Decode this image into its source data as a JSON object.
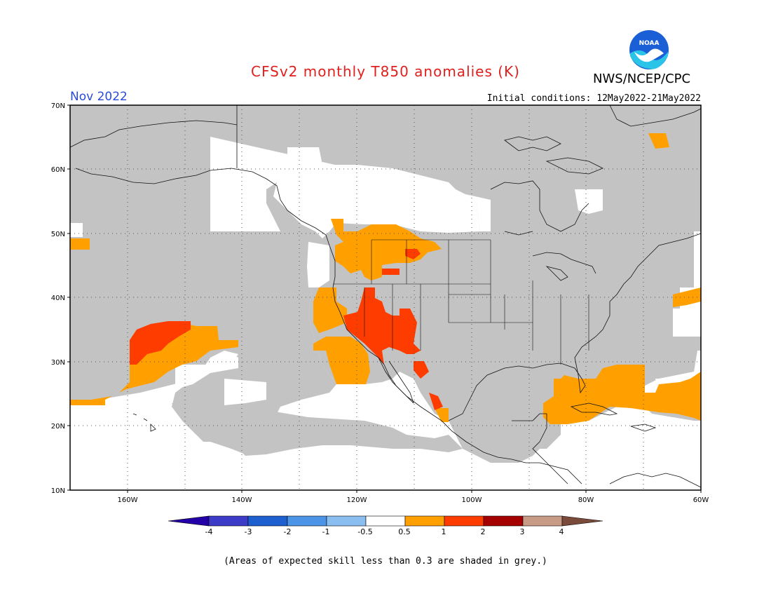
{
  "title": "CFSv2 monthly T850 anomalies (K)",
  "agency": "NWS/NCEP/CPC",
  "logo_text": "NOAA",
  "month": "Nov 2022",
  "initial_conditions": "Initial conditions: 12May2022-21May2022",
  "footnote": "(Areas of expected skill less than 0.3 are shaded in grey.)",
  "lat_labels": [
    "70N",
    "60N",
    "50N",
    "40N",
    "30N",
    "20N",
    "10N"
  ],
  "lon_labels": [
    "160W",
    "140W",
    "120W",
    "100W",
    "80W",
    "60W"
  ],
  "colors": {
    "grey_low_skill": "#c3c3c3",
    "map_bg": "#ffffff",
    "title_red": "#e0201e",
    "month_blue": "#2a4bd7"
  },
  "colorbar": {
    "tick_labels": [
      "-4",
      "-3",
      "-2",
      "-1",
      "-0.5",
      "0.5",
      "1",
      "2",
      "3",
      "4"
    ],
    "colors": [
      "#2400a8",
      "#3c3cc8",
      "#1e5fd0",
      "#4b94e8",
      "#8bbef0",
      "#ffffff",
      "#ff9f00",
      "#ff3c00",
      "#a50000",
      "#c89b87",
      "#7a4a3a"
    ]
  }
}
